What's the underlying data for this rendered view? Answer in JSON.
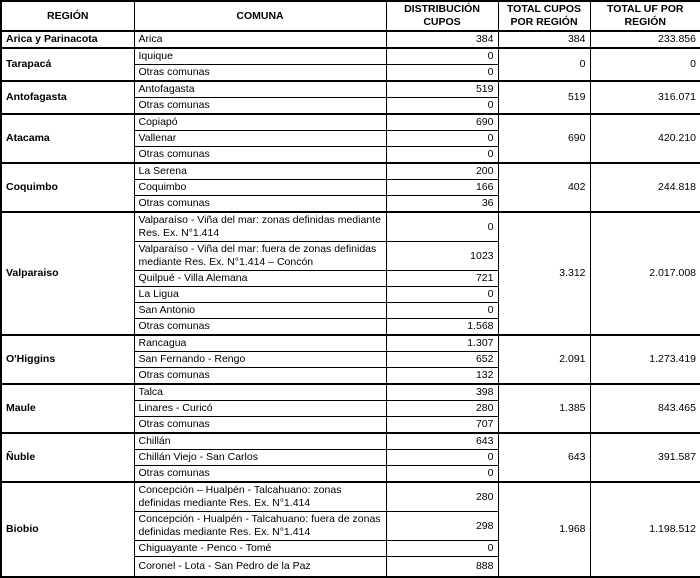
{
  "table": {
    "columns": [
      "REGIÓN",
      "COMUNA",
      "DISTRIBUCIÓN CUPOS",
      "TOTAL CUPOS POR REGIÓN",
      "TOTAL UF POR REGIÓN"
    ],
    "regions": [
      {
        "name": "Arica y Parinacota",
        "total_cupos": "384",
        "total_uf": "233.856",
        "comunas": [
          {
            "name": "Arica",
            "cupos": "384"
          }
        ]
      },
      {
        "name": "Tarapacá",
        "total_cupos": "0",
        "total_uf": "0",
        "comunas": [
          {
            "name": "Iquique",
            "cupos": "0"
          },
          {
            "name": "Otras comunas",
            "cupos": "0"
          }
        ]
      },
      {
        "name": "Antofagasta",
        "total_cupos": "519",
        "total_uf": "316.071",
        "comunas": [
          {
            "name": "Antofagasta",
            "cupos": "519"
          },
          {
            "name": "Otras comunas",
            "cupos": "0"
          }
        ]
      },
      {
        "name": "Atacama",
        "total_cupos": "690",
        "total_uf": "420.210",
        "comunas": [
          {
            "name": "Copiapó",
            "cupos": "690"
          },
          {
            "name": "Vallenar",
            "cupos": "0"
          },
          {
            "name": "Otras comunas",
            "cupos": "0"
          }
        ]
      },
      {
        "name": "Coquimbo",
        "total_cupos": "402",
        "total_uf": "244.818",
        "comunas": [
          {
            "name": "La Serena",
            "cupos": "200"
          },
          {
            "name": "Coquimbo",
            "cupos": "166"
          },
          {
            "name": "Otras comunas",
            "cupos": "36"
          }
        ]
      },
      {
        "name": "Valparaiso",
        "total_cupos": "3.312",
        "total_uf": "2.017.008",
        "comunas": [
          {
            "name": "Valparaíso - Viña del mar: zonas definidas mediante Res. Ex. N°1.414",
            "cupos": "0"
          },
          {
            "name": "Valparaíso - Viña del mar: fuera de zonas definidas mediante Res. Ex. N°1.414 – Concón",
            "cupos": "1023"
          },
          {
            "name": "Quilpué - Villa Alemana",
            "cupos": "721"
          },
          {
            "name": "La Ligua",
            "cupos": "0"
          },
          {
            "name": "San Antonio",
            "cupos": "0"
          },
          {
            "name": "Otras comunas",
            "cupos": "1.568"
          }
        ]
      },
      {
        "name": "O'Higgins",
        "total_cupos": "2.091",
        "total_uf": "1.273.419",
        "comunas": [
          {
            "name": "Rancagua",
            "cupos": "1.307"
          },
          {
            "name": "San Fernando - Rengo",
            "cupos": "652"
          },
          {
            "name": "Otras comunas",
            "cupos": "132"
          }
        ]
      },
      {
        "name": "Maule",
        "total_cupos": "1.385",
        "total_uf": "843.465",
        "comunas": [
          {
            "name": "Talca",
            "cupos": "398"
          },
          {
            "name": "Linares - Curicó",
            "cupos": "280"
          },
          {
            "name": "Otras comunas",
            "cupos": "707"
          }
        ]
      },
      {
        "name": "Ñuble",
        "total_cupos": "643",
        "total_uf": "391.587",
        "comunas": [
          {
            "name": "Chillán",
            "cupos": "643"
          },
          {
            "name": "Chillán Viejo - San Carlos",
            "cupos": "0"
          },
          {
            "name": "Otras comunas",
            "cupos": "0"
          }
        ]
      },
      {
        "name": "Biobio",
        "total_cupos": "1.968",
        "total_uf": "1.198.512",
        "comunas": [
          {
            "name": "Concepción – Hualpén - Talcahuano: zonas definidas mediante Res. Ex. N°1.414",
            "cupos": "280"
          },
          {
            "name": "Concepción - Hualpén - Talcahuano: fuera de zonas definidas mediante Res. Ex. N°1.414",
            "cupos": "298"
          },
          {
            "name": "Chiguayante - Penco - Tomé",
            "cupos": "0"
          },
          {
            "name": "Coronel - Lota - San Pedro de la Paz",
            "cupos": "888"
          }
        ]
      }
    ]
  }
}
